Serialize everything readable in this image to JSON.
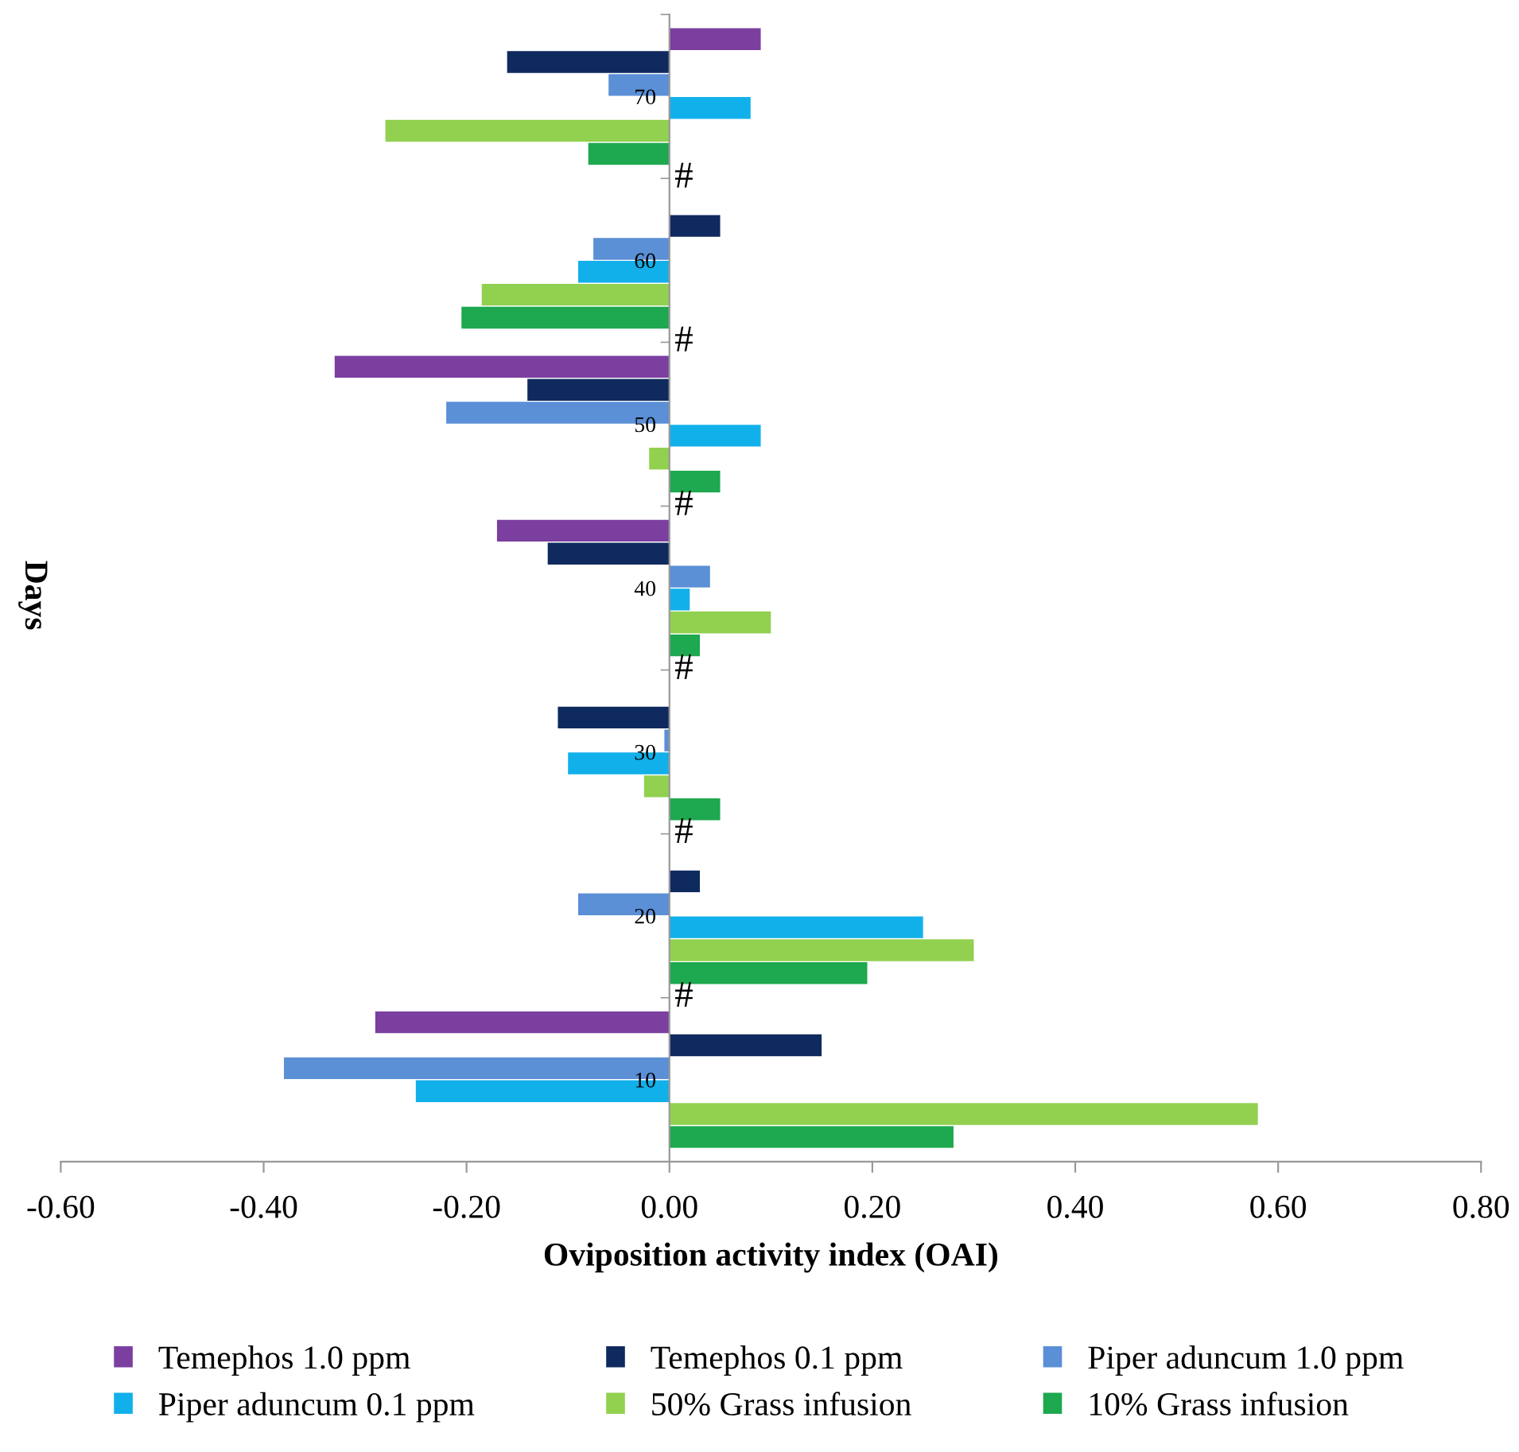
{
  "chart_data": {
    "type": "bar",
    "orientation": "horizontal",
    "xlabel": "Oviposition activity index (OAI)",
    "ylabel": "Days",
    "categories": [
      "70",
      "60",
      "50",
      "40",
      "30",
      "20",
      "10"
    ],
    "series": [
      {
        "name": "Temephos 1.0 ppm",
        "color": "#7b3fa0",
        "values": [
          0.09,
          null,
          -0.33,
          -0.17,
          null,
          null,
          -0.29
        ]
      },
      {
        "name": "Temephos 0.1 ppm",
        "color": "#0f2a5e",
        "values": [
          -0.16,
          0.05,
          -0.14,
          -0.12,
          -0.11,
          0.03,
          0.15
        ]
      },
      {
        "name": "Piper aduncum 1.0 ppm",
        "color": "#5b8fd6",
        "values": [
          -0.06,
          -0.075,
          -0.22,
          0.04,
          -0.005,
          -0.09,
          -0.38
        ]
      },
      {
        "name": "Piper aduncum 0.1 ppm",
        "color": "#12b0ea",
        "values": [
          0.08,
          -0.09,
          0.09,
          0.02,
          -0.1,
          0.25,
          -0.25
        ]
      },
      {
        "name": "50% Grass infusion",
        "color": "#92d050",
        "values": [
          -0.28,
          -0.185,
          -0.02,
          0.1,
          -0.025,
          0.3,
          0.58
        ]
      },
      {
        "name": "10% Grass infusion",
        "color": "#1ea84f",
        "values": [
          -0.08,
          -0.205,
          0.05,
          0.03,
          0.05,
          0.195,
          0.28
        ]
      }
    ],
    "annotations": [
      "#",
      "#",
      "#",
      "#",
      "#",
      "#"
    ],
    "xlim": [
      -0.6,
      0.8
    ],
    "xticks": [
      {
        "value": -0.6,
        "label": "-0.60"
      },
      {
        "value": -0.4,
        "label": "-0.40"
      },
      {
        "value": -0.2,
        "label": "-0.20"
      },
      {
        "value": 0,
        "label": "0.00"
      },
      {
        "value": 0.2,
        "label": "0.20"
      },
      {
        "value": 0.4,
        "label": "0.40"
      },
      {
        "value": 0.6,
        "label": "0.60"
      },
      {
        "value": 0.8,
        "label": "0.80"
      }
    ],
    "grid": false,
    "legend": "bottom"
  }
}
